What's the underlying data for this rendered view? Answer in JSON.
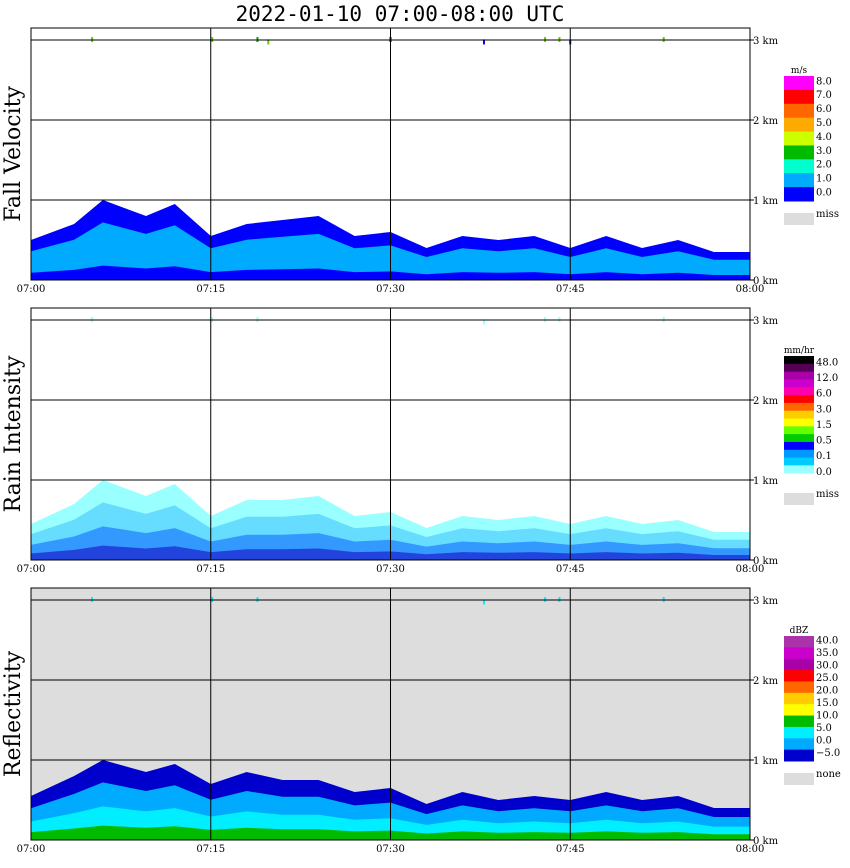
{
  "title": "2022-01-10   07:00-08:00 UTC",
  "chart_data": [
    {
      "type": "heatmap",
      "ylabel": "Fall Velocity",
      "x_ticks": [
        "07:00",
        "07:15",
        "07:30",
        "07:45",
        "08:00"
      ],
      "y_ticks": [
        "3 km",
        "2 km",
        "1 km",
        "0 km"
      ],
      "xlim": [
        "07:00",
        "08:00"
      ],
      "ylim_km": [
        0,
        3.15
      ],
      "grid": true,
      "background": "#ffffff",
      "colorbar": {
        "unit": "m/s",
        "labels": [
          "8.0",
          "7.0",
          "6.0",
          "5.0",
          "4.0",
          "3.0",
          "2.0",
          "1.0",
          "0.0"
        ],
        "colors": [
          "#ff00ff",
          "#ff0000",
          "#ff6600",
          "#ffaa00",
          "#ccff00",
          "#00bb00",
          "#00ffcc",
          "#00aaff",
          "#0000ff"
        ],
        "miss_label": "miss",
        "miss_color": "#dddddd"
      },
      "echo": {
        "colors": [
          "#0000ff",
          "#00aaff",
          "#00aaff",
          "#0000ff"
        ],
        "profile_km": [
          [
            0.0,
            0.45
          ],
          [
            0.06,
            0.75
          ],
          [
            0.1,
            0.95
          ],
          [
            0.16,
            0.85
          ],
          [
            0.2,
            0.9
          ],
          [
            0.25,
            0.6
          ],
          [
            0.3,
            0.65
          ],
          [
            0.35,
            0.8
          ],
          [
            0.4,
            0.75
          ],
          [
            0.45,
            0.6
          ],
          [
            0.5,
            0.55
          ],
          [
            0.55,
            0.45
          ],
          [
            0.6,
            0.5
          ],
          [
            0.65,
            0.55
          ],
          [
            0.7,
            0.5
          ],
          [
            0.75,
            0.45
          ],
          [
            0.8,
            0.5
          ],
          [
            0.85,
            0.45
          ],
          [
            0.9,
            0.45
          ],
          [
            0.95,
            0.4
          ],
          [
            1.0,
            0.3
          ]
        ]
      },
      "specks": [
        [
          0.085,
          3.0,
          "#66cc00"
        ],
        [
          0.252,
          3.0,
          "#66cc00"
        ],
        [
          0.315,
          3.0,
          "#00aa00"
        ],
        [
          0.33,
          2.97,
          "#66cc00"
        ],
        [
          0.5,
          3.0,
          "#0000aa"
        ],
        [
          0.63,
          2.97,
          "#0000ff"
        ],
        [
          0.715,
          3.0,
          "#66cc00"
        ],
        [
          0.735,
          3.0,
          "#66cc00"
        ],
        [
          0.75,
          2.97,
          "#0000ff"
        ],
        [
          0.88,
          3.0,
          "#66cc00"
        ]
      ]
    },
    {
      "type": "heatmap",
      "ylabel": "Rain Intensity",
      "x_ticks": [
        "07:00",
        "07:15",
        "07:30",
        "07:45",
        "08:00"
      ],
      "y_ticks": [
        "3 km",
        "2 km",
        "1 km",
        "0 km"
      ],
      "xlim": [
        "07:00",
        "08:00"
      ],
      "ylim_km": [
        0,
        3.15
      ],
      "grid": true,
      "background": "#ffffff",
      "colorbar": {
        "unit": "mm/hr",
        "labels": [
          "48.0",
          "12.0",
          "6.0",
          "3.0",
          "1.5",
          "0.5",
          "0.1",
          "0.0"
        ],
        "colors": [
          "#000000",
          "#550055",
          "#aa00aa",
          "#cc00cc",
          "#ff00aa",
          "#ff0000",
          "#ff6600",
          "#ffcc00",
          "#ffff00",
          "#66ff00",
          "#00cc00",
          "#0000ff",
          "#0099ff",
          "#00ccff",
          "#99ffff",
          "#ffffff"
        ],
        "miss_label": "miss",
        "miss_color": "#dddddd"
      },
      "echo": {
        "colors": [
          "#99ffff",
          "#66ddff",
          "#3399ff",
          "#2244dd"
        ],
        "profile_km": [
          [
            0.0,
            0.4
          ],
          [
            0.06,
            0.75
          ],
          [
            0.1,
            0.95
          ],
          [
            0.16,
            0.85
          ],
          [
            0.2,
            0.9
          ],
          [
            0.25,
            0.6
          ],
          [
            0.3,
            0.7
          ],
          [
            0.35,
            0.8
          ],
          [
            0.4,
            0.75
          ],
          [
            0.45,
            0.6
          ],
          [
            0.5,
            0.55
          ],
          [
            0.55,
            0.45
          ],
          [
            0.6,
            0.5
          ],
          [
            0.65,
            0.55
          ],
          [
            0.7,
            0.5
          ],
          [
            0.75,
            0.5
          ],
          [
            0.8,
            0.5
          ],
          [
            0.85,
            0.5
          ],
          [
            0.9,
            0.45
          ],
          [
            0.95,
            0.4
          ],
          [
            1.0,
            0.3
          ]
        ]
      },
      "specks": [
        [
          0.085,
          3.0,
          "#99ffff"
        ],
        [
          0.252,
          3.0,
          "#99ffff"
        ],
        [
          0.315,
          3.0,
          "#99ffff"
        ],
        [
          0.63,
          2.97,
          "#99ffff"
        ],
        [
          0.715,
          3.0,
          "#99ffff"
        ],
        [
          0.735,
          3.0,
          "#99ffff"
        ],
        [
          0.88,
          3.0,
          "#99ffff"
        ]
      ]
    },
    {
      "type": "heatmap",
      "ylabel": "Reflectivity",
      "x_ticks": [
        "07:00",
        "07:15",
        "07:30",
        "07:45",
        "08:00"
      ],
      "y_ticks": [
        "3 km",
        "2 km",
        "1 km",
        "0 km"
      ],
      "xlim": [
        "07:00",
        "08:00"
      ],
      "ylim_km": [
        0,
        3.15
      ],
      "grid": true,
      "background": "#dddddd",
      "colorbar": {
        "unit": "dBZ",
        "labels": [
          "40.0",
          "35.0",
          "30.0",
          "25.0",
          "20.0",
          "15.0",
          "10.0",
          "5.0",
          "0.0",
          "−5.0"
        ],
        "colors": [
          "#aa33aa",
          "#cc00cc",
          "#aa00aa",
          "#ff0000",
          "#ff6600",
          "#ffcc00",
          "#ffff00",
          "#00bb00",
          "#00eeff",
          "#00aaff",
          "#0000cc"
        ],
        "miss_label": "none",
        "miss_color": "#dddddd"
      },
      "echo": {
        "colors": [
          "#0000cc",
          "#00aaff",
          "#00eeff",
          "#00bb00"
        ],
        "profile_km": [
          [
            0.0,
            0.5
          ],
          [
            0.06,
            0.85
          ],
          [
            0.1,
            0.95
          ],
          [
            0.16,
            0.9
          ],
          [
            0.2,
            0.9
          ],
          [
            0.25,
            0.75
          ],
          [
            0.3,
            0.8
          ],
          [
            0.35,
            0.8
          ],
          [
            0.4,
            0.7
          ],
          [
            0.45,
            0.65
          ],
          [
            0.5,
            0.6
          ],
          [
            0.55,
            0.5
          ],
          [
            0.6,
            0.55
          ],
          [
            0.65,
            0.55
          ],
          [
            0.7,
            0.5
          ],
          [
            0.75,
            0.55
          ],
          [
            0.8,
            0.55
          ],
          [
            0.85,
            0.55
          ],
          [
            0.9,
            0.5
          ],
          [
            0.95,
            0.45
          ],
          [
            1.0,
            0.35
          ]
        ]
      },
      "specks": [
        [
          0.085,
          3.0,
          "#00eeff"
        ],
        [
          0.252,
          3.0,
          "#00eeff"
        ],
        [
          0.315,
          3.0,
          "#00eeff"
        ],
        [
          0.63,
          2.97,
          "#00eeff"
        ],
        [
          0.715,
          3.0,
          "#00eeff"
        ],
        [
          0.735,
          3.0,
          "#00eeff"
        ],
        [
          0.88,
          3.0,
          "#00eeff"
        ]
      ]
    }
  ]
}
